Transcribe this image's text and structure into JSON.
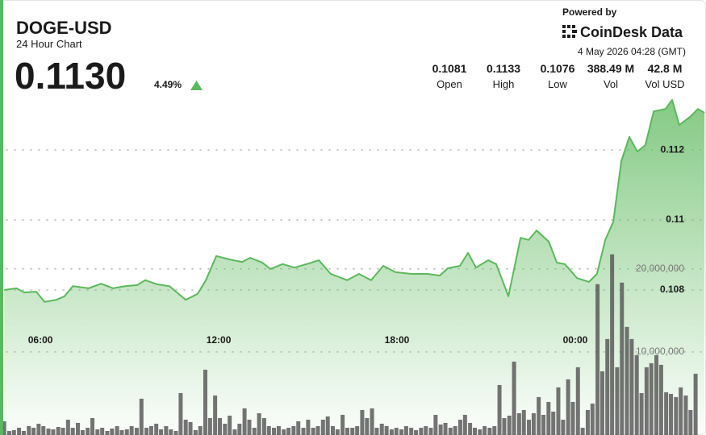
{
  "header": {
    "symbol": "DOGE-USD",
    "subtitle": "24 Hour Chart",
    "price": "0.1130",
    "change": "4.49%",
    "powered_by": "Powered by",
    "brand": "CoinDesk Data",
    "timestamp": "4 May 2026 04:28 (GMT)"
  },
  "stats": [
    {
      "value": "0.1081",
      "label": "Open"
    },
    {
      "value": "0.1133",
      "label": "High"
    },
    {
      "value": "0.1076",
      "label": "Low"
    },
    {
      "value": "388.49 M",
      "label": "Vol"
    },
    {
      "value": "42.8 M",
      "label": "Vol USD"
    }
  ],
  "chart_data": {
    "type": "line",
    "grid": true,
    "xlim": [
      4.64,
      28.4
    ],
    "xticks": [
      {
        "value": 6,
        "label": "06:00"
      },
      {
        "value": 12,
        "label": "12:00"
      },
      {
        "value": 18,
        "label": "18:00"
      },
      {
        "value": 24,
        "label": "00:00"
      }
    ],
    "ylim": [
      0.10386,
      0.11375
    ],
    "yticks": [
      0.108,
      0.11,
      0.112
    ],
    "y2lim": [
      0,
      41700000
    ],
    "y2ticks": [
      {
        "value": 10000000,
        "label": "10,000,000"
      },
      {
        "value": 20000000,
        "label": "20,000,000"
      }
    ],
    "series": [
      {
        "type": "line",
        "color": "#5cb85c",
        "x": [
          4.78,
          5.19,
          5.46,
          5.86,
          6.14,
          6.54,
          6.81,
          7.09,
          7.63,
          8.04,
          8.44,
          8.85,
          9.26,
          9.53,
          9.94,
          10.34,
          10.89,
          11.29,
          11.57,
          11.92,
          12.38,
          12.79,
          13.06,
          13.47,
          13.74,
          14.15,
          14.55,
          14.96,
          15.37,
          15.77,
          16.32,
          16.72,
          17.13,
          17.54,
          17.95,
          18.49,
          19.03,
          19.44,
          19.71,
          20.12,
          20.39,
          20.66,
          21.07,
          21.34,
          21.75,
          22.16,
          22.43,
          22.7,
          23.11,
          23.38,
          23.65,
          24.06,
          24.46,
          24.73,
          25.01,
          25.28,
          25.55,
          25.82,
          26.09,
          26.36,
          26.64,
          27.04,
          27.26,
          27.5,
          27.86,
          28.13,
          28.35
        ],
        "values": [
          0.108,
          0.10805,
          0.10793,
          0.10795,
          0.10766,
          0.10772,
          0.10782,
          0.10811,
          0.10805,
          0.10818,
          0.10805,
          0.10811,
          0.10814,
          0.10828,
          0.10816,
          0.10811,
          0.10772,
          0.10789,
          0.10828,
          0.10897,
          0.10887,
          0.1088,
          0.10892,
          0.10878,
          0.1086,
          0.10874,
          0.10864,
          0.10874,
          0.10885,
          0.10846,
          0.10828,
          0.10846,
          0.10828,
          0.10869,
          0.10851,
          0.10846,
          0.10846,
          0.10841,
          0.10862,
          0.10869,
          0.10906,
          0.10864,
          0.10885,
          0.10874,
          0.10782,
          0.10949,
          0.10943,
          0.1097,
          0.10938,
          0.10878,
          0.10874,
          0.10834,
          0.10823,
          0.10846,
          0.10943,
          0.10995,
          0.11168,
          0.11237,
          0.11195,
          0.11214,
          0.1131,
          0.11317,
          0.11343,
          0.11271,
          0.11294,
          0.11317,
          0.11306
        ]
      },
      {
        "type": "bar",
        "axis": "y2",
        "color": "#5a5a5a",
        "x": [
          4.78,
          4.95,
          5.11,
          5.28,
          5.44,
          5.61,
          5.77,
          5.94,
          6.1,
          6.27,
          6.43,
          6.6,
          6.76,
          6.93,
          7.09,
          7.26,
          7.42,
          7.59,
          7.75,
          7.92,
          8.08,
          8.25,
          8.41,
          8.58,
          8.74,
          8.91,
          9.07,
          9.24,
          9.4,
          9.57,
          9.73,
          9.9,
          10.06,
          10.23,
          10.39,
          10.56,
          10.72,
          10.89,
          11.05,
          11.22,
          11.38,
          11.55,
          11.71,
          11.88,
          12.04,
          12.21,
          12.37,
          12.54,
          12.7,
          12.87,
          13.03,
          13.2,
          13.36,
          13.53,
          13.69,
          13.86,
          14.02,
          14.19,
          14.35,
          14.52,
          14.68,
          14.85,
          15.01,
          15.18,
          15.34,
          15.51,
          15.67,
          15.84,
          16,
          16.17,
          16.33,
          16.5,
          16.66,
          16.83,
          16.99,
          17.16,
          17.32,
          17.49,
          17.65,
          17.82,
          17.98,
          18.15,
          18.31,
          18.48,
          18.64,
          18.81,
          18.97,
          19.14,
          19.3,
          19.47,
          19.63,
          19.8,
          19.96,
          20.13,
          20.29,
          20.46,
          20.62,
          20.79,
          20.95,
          21.12,
          21.28,
          21.45,
          21.61,
          21.78,
          21.94,
          22.11,
          22.27,
          22.44,
          22.6,
          22.77,
          22.93,
          23.1,
          23.26,
          23.43,
          23.59,
          23.76,
          23.92,
          24.09,
          24.25,
          24.42,
          24.58,
          24.75,
          24.91,
          25.08,
          25.24,
          25.41,
          25.57,
          25.74,
          25.9,
          26.07,
          26.23,
          26.4,
          26.56,
          26.73,
          26.89,
          27.06,
          27.22,
          27.39,
          27.55,
          27.72,
          27.88,
          28.05
        ],
        "values": [
          1650000,
          485000,
          583000,
          874000,
          485000,
          1068000,
          874000,
          1359000,
          1068000,
          777000,
          680000,
          971000,
          874000,
          1845000,
          874000,
          1456000,
          583000,
          874000,
          2039000,
          680000,
          874000,
          485000,
          777000,
          1068000,
          583000,
          680000,
          1068000,
          874000,
          4369000,
          874000,
          1068000,
          1359000,
          680000,
          1068000,
          680000,
          485000,
          5049000,
          1845000,
          1553000,
          583000,
          1068000,
          7864000,
          2039000,
          4757000,
          2039000,
          1359000,
          2330000,
          680000,
          1359000,
          3204000,
          1845000,
          874000,
          2621000,
          2039000,
          1068000,
          874000,
          1068000,
          680000,
          874000,
          1068000,
          1650000,
          874000,
          1845000,
          874000,
          1068000,
          1845000,
          2233000,
          1068000,
          680000,
          2427000,
          874000,
          874000,
          1068000,
          3010000,
          2039000,
          3204000,
          874000,
          1359000,
          1068000,
          680000,
          874000,
          680000,
          1068000,
          874000,
          583000,
          874000,
          1068000,
          874000,
          2427000,
          1262000,
          1456000,
          874000,
          1068000,
          1845000,
          2427000,
          1456000,
          874000,
          680000,
          1068000,
          874000,
          1068000,
          6019000,
          2039000,
          2330000,
          8835000,
          2621000,
          3010000,
          1845000,
          2621000,
          4563000,
          2427000,
          3981000,
          2816000,
          5728000,
          1845000,
          6699000,
          3981000,
          8155000,
          874000,
          3010000,
          3786000,
          18155000,
          7670000,
          11553000,
          21748000,
          8155000,
          18350000,
          13010000,
          11553000,
          9612000,
          5049000,
          8155000,
          8641000,
          9612000,
          8447000,
          5146000,
          4951000,
          4563000,
          5728000,
          4757000,
          3010000,
          7379000
        ]
      }
    ]
  }
}
